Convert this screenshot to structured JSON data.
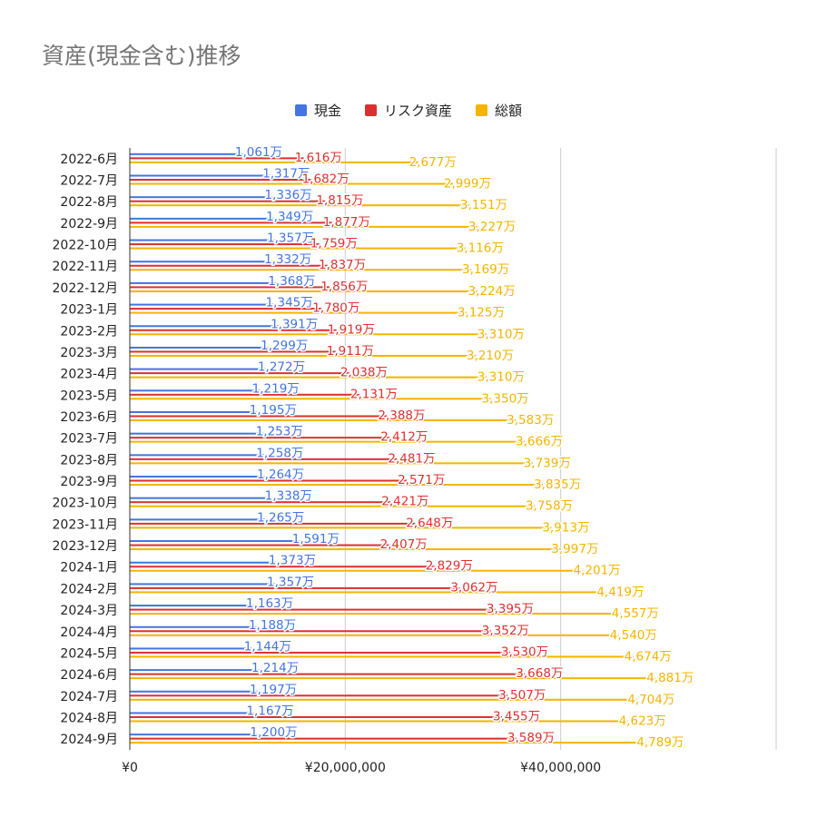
{
  "chart_data": {
    "type": "bar",
    "orientation": "horizontal",
    "title": "資産(現金含む)推移",
    "legend_position": "top",
    "xlim": [
      0,
      60000000
    ],
    "x_ticks": [
      {
        "value": 0,
        "label": "¥0"
      },
      {
        "value": 20000000,
        "label": "¥20,000,000"
      },
      {
        "value": 40000000,
        "label": "¥40,000,000"
      }
    ],
    "categories": [
      "2022-6月",
      "2022-7月",
      "2022-8月",
      "2022-9月",
      "2022-10月",
      "2022-11月",
      "2022-12月",
      "2023-1月",
      "2023-2月",
      "2023-3月",
      "2023-4月",
      "2023-5月",
      "2023-6月",
      "2023-7月",
      "2023-8月",
      "2023-9月",
      "2023-10月",
      "2023-11月",
      "2023-12月",
      "2024-1月",
      "2024-2月",
      "2024-3月",
      "2024-4月",
      "2024-5月",
      "2024-6月",
      "2024-7月",
      "2024-8月",
      "2024-9月"
    ],
    "series": [
      {
        "name": "現金",
        "color": "#4374e0",
        "values": [
          10610000,
          13170000,
          13360000,
          13490000,
          13570000,
          13320000,
          13680000,
          13450000,
          13910000,
          12990000,
          12720000,
          12190000,
          11950000,
          12530000,
          12580000,
          12640000,
          13380000,
          12650000,
          15910000,
          13730000,
          13570000,
          11630000,
          11880000,
          11440000,
          12140000,
          11970000,
          11670000,
          12000000
        ],
        "labels": [
          "1,061万",
          "1,317万",
          "1,336万",
          "1,349万",
          "1,357万",
          "1,332万",
          "1,368万",
          "1,345万",
          "1,391万",
          "1,299万",
          "1,272万",
          "1,219万",
          "1,195万",
          "1,253万",
          "1,258万",
          "1,264万",
          "1,338万",
          "1,265万",
          "1,591万",
          "1,373万",
          "1,357万",
          "1,163万",
          "1,188万",
          "1,144万",
          "1,214万",
          "1,197万",
          "1,167万",
          "1,200万"
        ]
      },
      {
        "name": "リスク資産",
        "color": "#dc3030",
        "values": [
          16160000,
          16820000,
          18150000,
          18770000,
          17590000,
          18370000,
          18560000,
          17800000,
          19190000,
          19110000,
          20380000,
          21310000,
          23880000,
          24120000,
          24810000,
          25710000,
          24210000,
          26480000,
          24070000,
          28290000,
          30620000,
          33950000,
          33520000,
          35300000,
          36680000,
          35070000,
          34550000,
          35890000
        ],
        "labels": [
          "1,616万",
          "1,682万",
          "1,815万",
          "1,877万",
          "1,759万",
          "1,837万",
          "1,856万",
          "1,780万",
          "1,919万",
          "1,911万",
          "2,038万",
          "2,131万",
          "2,388万",
          "2,412万",
          "2,481万",
          "2,571万",
          "2,421万",
          "2,648万",
          "2,407万",
          "2,829万",
          "3,062万",
          "3,395万",
          "3,352万",
          "3,530万",
          "3,668万",
          "3,507万",
          "3,455万",
          "3,589万"
        ]
      },
      {
        "name": "総額",
        "color": "#f4b400",
        "values": [
          26770000,
          29990000,
          31510000,
          32270000,
          31160000,
          31690000,
          32240000,
          31250000,
          33100000,
          32100000,
          33100000,
          33500000,
          35830000,
          36660000,
          37390000,
          38350000,
          37580000,
          39130000,
          39970000,
          42010000,
          44190000,
          45570000,
          45400000,
          46740000,
          48810000,
          47040000,
          46230000,
          47890000
        ],
        "labels": [
          "2,677万",
          "2,999万",
          "3,151万",
          "3,227万",
          "3,116万",
          "3,169万",
          "3,224万",
          "3,125万",
          "3,310万",
          "3,210万",
          "3,310万",
          "3,350万",
          "3,583万",
          "3,666万",
          "3,739万",
          "3,835万",
          "3,758万",
          "3,913万",
          "3,997万",
          "4,201万",
          "4,419万",
          "4,557万",
          "4,540万",
          "4,674万",
          "4,881万",
          "4,704万",
          "4,623万",
          "4,789万"
        ]
      }
    ]
  }
}
